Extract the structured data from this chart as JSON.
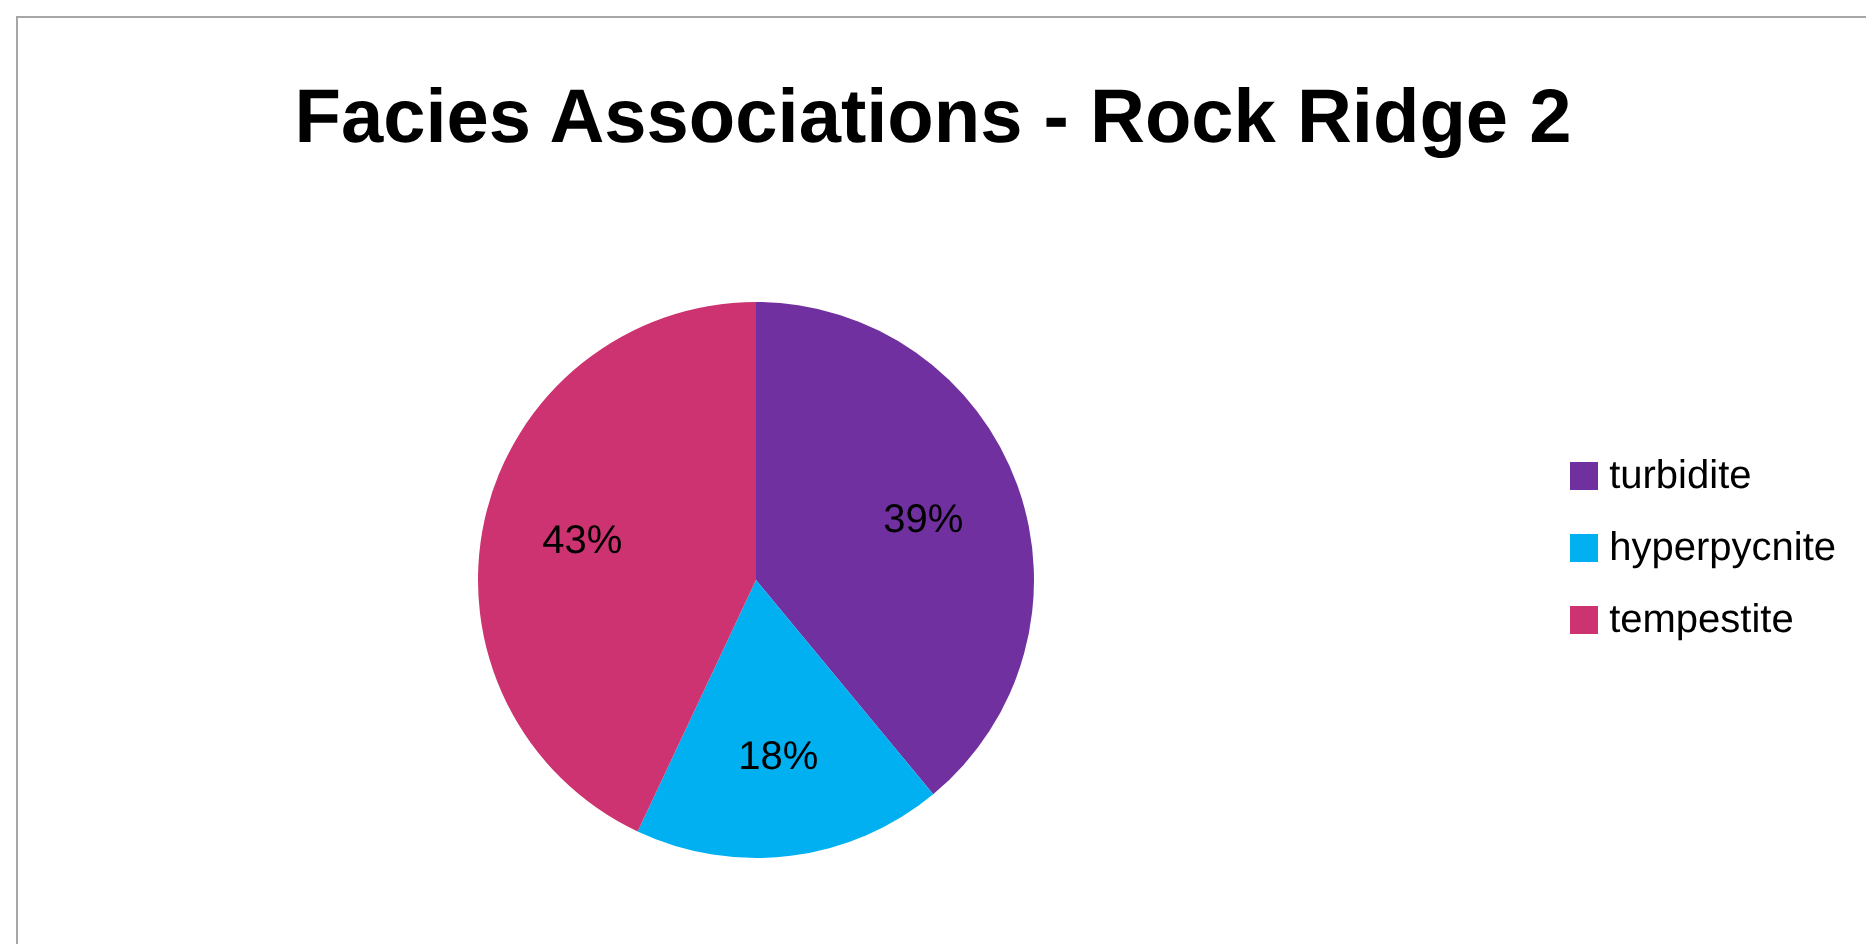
{
  "chart_data": {
    "type": "pie",
    "title": "Facies Associations - Rock Ridge 2",
    "categories": [
      "turbidite",
      "hyperpycnite",
      "tempestite"
    ],
    "values": [
      39,
      18,
      43
    ],
    "value_labels": [
      "39%",
      "18%",
      "43%"
    ],
    "colors": [
      "#7030a0",
      "#00b0f0",
      "#cc3370"
    ],
    "legend": "right"
  }
}
